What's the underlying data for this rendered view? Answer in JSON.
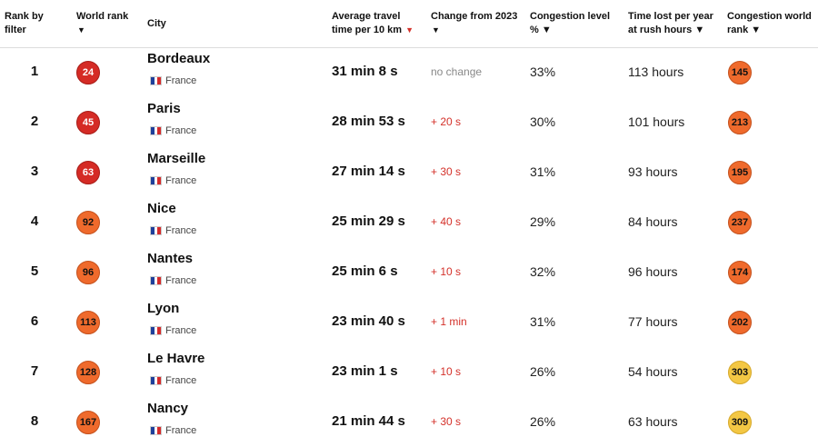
{
  "headers": {
    "rank_by_filter": [
      "Rank by",
      "filter"
    ],
    "world_rank": [
      "World rank",
      "▼"
    ],
    "city": "City",
    "avg_travel": [
      "Average travel",
      "time per 10 km ▼"
    ],
    "change": [
      "Change from 2023",
      "▼"
    ],
    "congestion_level": [
      "Congestion level",
      "% ▼"
    ],
    "time_lost": [
      "Time lost per year",
      "at rush hours ▼"
    ],
    "congestion_world_rank": [
      "Congestion world",
      "rank ▼"
    ]
  },
  "colors": {
    "red_badge": "#d52b25",
    "orange_badge": "#ef6a2c",
    "yellow_badge": "#f3c744",
    "change_up": "#d4312a",
    "change_none": "#888888"
  },
  "rows": [
    {
      "rank": "1",
      "world_rank": "24",
      "world_color": "red",
      "city": "Bordeaux",
      "country": "France",
      "travel": "31 min 8 s",
      "change": "no change",
      "change_type": "none",
      "congestion": "33%",
      "hours": "113 hours",
      "cong_rank": "145",
      "cong_color": "orange"
    },
    {
      "rank": "2",
      "world_rank": "45",
      "world_color": "red",
      "city": "Paris",
      "country": "France",
      "travel": "28 min 53 s",
      "change": "+ 20 s",
      "change_type": "up",
      "congestion": "30%",
      "hours": "101 hours",
      "cong_rank": "213",
      "cong_color": "orange"
    },
    {
      "rank": "3",
      "world_rank": "63",
      "world_color": "red",
      "city": "Marseille",
      "country": "France",
      "travel": "27 min 14 s",
      "change": "+ 30 s",
      "change_type": "up",
      "congestion": "31%",
      "hours": "93 hours",
      "cong_rank": "195",
      "cong_color": "orange"
    },
    {
      "rank": "4",
      "world_rank": "92",
      "world_color": "orange",
      "city": "Nice",
      "country": "France",
      "travel": "25 min 29 s",
      "change": "+ 40 s",
      "change_type": "up",
      "congestion": "29%",
      "hours": "84 hours",
      "cong_rank": "237",
      "cong_color": "orange"
    },
    {
      "rank": "5",
      "world_rank": "96",
      "world_color": "orange",
      "city": "Nantes",
      "country": "France",
      "travel": "25 min 6 s",
      "change": "+ 10 s",
      "change_type": "up",
      "congestion": "32%",
      "hours": "96 hours",
      "cong_rank": "174",
      "cong_color": "orange"
    },
    {
      "rank": "6",
      "world_rank": "113",
      "world_color": "orange",
      "city": "Lyon",
      "country": "France",
      "travel": "23 min 40 s",
      "change": "+ 1 min",
      "change_type": "up",
      "congestion": "31%",
      "hours": "77 hours",
      "cong_rank": "202",
      "cong_color": "orange"
    },
    {
      "rank": "7",
      "world_rank": "128",
      "world_color": "orange",
      "city": "Le Havre",
      "country": "France",
      "travel": "23 min 1 s",
      "change": "+ 10 s",
      "change_type": "up",
      "congestion": "26%",
      "hours": "54 hours",
      "cong_rank": "303",
      "cong_color": "yellow"
    },
    {
      "rank": "8",
      "world_rank": "167",
      "world_color": "orange",
      "city": "Nancy",
      "country": "France",
      "travel": "21 min 44 s",
      "change": "+ 30 s",
      "change_type": "up",
      "congestion": "26%",
      "hours": "63 hours",
      "cong_rank": "309",
      "cong_color": "yellow"
    }
  ]
}
